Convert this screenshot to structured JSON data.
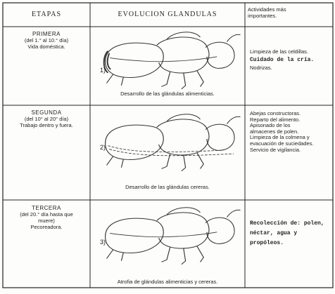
{
  "header": {
    "stages": "ETAPAS",
    "evolution": "EVOLUCION GLANDULAS",
    "activities": "Actividades más importantes."
  },
  "rows": [
    {
      "stage": "PRIMERA",
      "period": "(del 1.° al 10.° día)",
      "role": "Vida doméstica.",
      "number": "1)",
      "caption": "Desarrollo de las glándulas alimenticias.",
      "activities": [
        "Limpieza de las celdillas.",
        "Cuidado de la cría.",
        "Nodrizas."
      ]
    },
    {
      "stage": "SEGUNDA",
      "period": "(del 10° al 20° día)",
      "role": "Trabajo dentro y fuera.",
      "number": "2)",
      "caption": "Desarrollo de las glándulas cereras.",
      "activities": [
        "Abejas constructoras.",
        "Reparto del alimento.",
        "Apisonado de los almacenes de polen.",
        "Limpieza de la colmena y evacuación de suciedades.",
        "Servicio de vigilancia."
      ]
    },
    {
      "stage": "TERCERA",
      "period": "(del 20.° día hasta que muere)",
      "role": "Pecoreadora.",
      "number": "3)",
      "caption": "Atrofia de glándulas alimenticias y cereras.",
      "activities": [
        "Recolección de: polen, néctar, agua y propóleos."
      ]
    }
  ]
}
